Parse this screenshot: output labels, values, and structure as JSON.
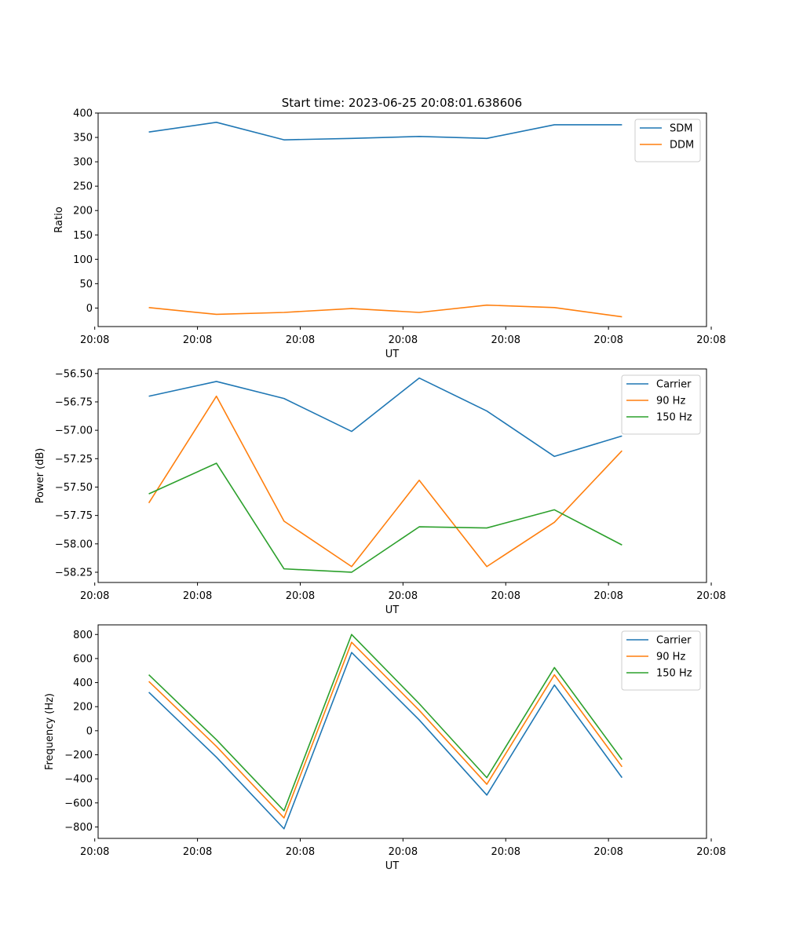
{
  "title": "Start time: 2023-06-25 20:08:01.638606",
  "chart_data": [
    {
      "type": "line",
      "xlabel": "UT",
      "ylabel": "Ratio",
      "x_tick_labels": [
        "20:08",
        "20:08",
        "20:08",
        "20:08",
        "20:08",
        "20:08",
        "20:08"
      ],
      "x_tick_last": "20:09",
      "x": [
        1,
        2,
        3,
        4,
        5,
        6,
        7,
        8
      ],
      "xlim": [
        0.25,
        9.25
      ],
      "ylim": [
        -38,
        400
      ],
      "yticks": [
        0,
        50,
        100,
        150,
        200,
        250,
        300,
        350,
        400
      ],
      "legend": "top-right",
      "series": [
        {
          "name": "SDM",
          "color": "#1f77b4",
          "values": [
            361,
            381,
            345,
            348,
            352,
            348,
            376,
            376
          ]
        },
        {
          "name": "DDM",
          "color": "#ff7f0e",
          "values": [
            1,
            -13,
            -9,
            -1,
            -9,
            6,
            1,
            -18
          ]
        }
      ]
    },
    {
      "type": "line",
      "xlabel": "UT",
      "ylabel": "Power (dB)",
      "x_tick_labels": [
        "20:08",
        "20:08",
        "20:08",
        "20:08",
        "20:08",
        "20:08",
        "20:08"
      ],
      "x_tick_last": "20:09",
      "x": [
        1,
        2,
        3,
        4,
        5,
        6,
        7,
        8
      ],
      "xlim": [
        0.25,
        9.25
      ],
      "ylim": [
        -58.34,
        -56.46
      ],
      "yticks": [
        -56.5,
        -56.75,
        -57.0,
        -57.25,
        -57.5,
        -57.75,
        -58.0,
        -58.25
      ],
      "ytick_labels": [
        "−56.50",
        "−56.75",
        "−57.00",
        "−57.25",
        "−57.50",
        "−57.75",
        "−58.00",
        "−58.25"
      ],
      "legend": "top-right",
      "series": [
        {
          "name": "Carrier",
          "color": "#1f77b4",
          "values": [
            -56.7,
            -56.57,
            -56.72,
            -57.01,
            -56.54,
            -56.83,
            -57.23,
            -57.05
          ]
        },
        {
          "name": "90 Hz",
          "color": "#ff7f0e",
          "values": [
            -57.64,
            -56.7,
            -57.8,
            -58.2,
            -57.44,
            -58.2,
            -57.81,
            -57.18
          ]
        },
        {
          "name": "150 Hz",
          "color": "#2ca02c",
          "values": [
            -57.56,
            -57.29,
            -58.22,
            -58.25,
            -57.85,
            -57.86,
            -57.7,
            -58.01
          ]
        }
      ]
    },
    {
      "type": "line",
      "xlabel": "UT",
      "ylabel": "Frequency (Hz)",
      "x_tick_labels": [
        "20:08",
        "20:08",
        "20:08",
        "20:08",
        "20:08",
        "20:08",
        "20:08"
      ],
      "x_tick_last": "20:09",
      "x": [
        1,
        2,
        3,
        4,
        5,
        6,
        7,
        8
      ],
      "xlim": [
        0.25,
        9.25
      ],
      "ylim": [
        -895,
        880
      ],
      "yticks": [
        800,
        600,
        400,
        200,
        0,
        -200,
        -400,
        -600,
        -800
      ],
      "ytick_labels": [
        "800",
        "600",
        "400",
        "200",
        "0",
        "−200",
        "−400",
        "−600",
        "−800"
      ],
      "legend": "top-right",
      "series": [
        {
          "name": "Carrier",
          "color": "#1f77b4",
          "values": [
            320,
            -220,
            -815,
            650,
            90,
            -535,
            380,
            -390
          ]
        },
        {
          "name": "90 Hz",
          "color": "#ff7f0e",
          "values": [
            410,
            -130,
            -725,
            735,
            170,
            -445,
            465,
            -300
          ]
        },
        {
          "name": "150 Hz",
          "color": "#2ca02c",
          "values": [
            465,
            -75,
            -665,
            800,
            225,
            -390,
            525,
            -240
          ]
        }
      ]
    }
  ]
}
